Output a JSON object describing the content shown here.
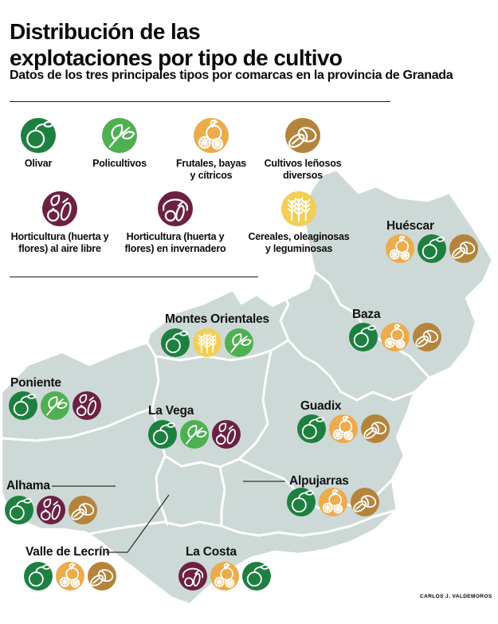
{
  "header": {
    "title": "Distribución de las\nexplotaciones por tipo de cultivo",
    "subtitle": "Datos de los tres principales tipos por comarcas en la provincia de Granada"
  },
  "crops": {
    "olivar": {
      "icon": "olive-icon",
      "color": "#1e8040"
    },
    "policultivos": {
      "icon": "leaves-icon",
      "color": "#4fb052"
    },
    "frutales": {
      "icon": "citrus-icon",
      "color": "#ecab4c"
    },
    "lenosos": {
      "icon": "nuts-icon",
      "color": "#b5843c"
    },
    "horti_libre": {
      "icon": "vegetables-icon",
      "color": "#6d2142"
    },
    "horti_inv": {
      "icon": "greenhouse-icon",
      "color": "#6d2142"
    },
    "cereales": {
      "icon": "wheat-icon",
      "color": "#f3ce55"
    }
  },
  "legend": {
    "items": [
      {
        "crop": "olivar",
        "label": "Olivar"
      },
      {
        "crop": "policultivos",
        "label": "Policultivos"
      },
      {
        "crop": "frutales",
        "label": "Frutales, bayas\ny cítricos"
      },
      {
        "crop": "lenosos",
        "label": "Cultivos leñosos\ndiversos"
      },
      {
        "crop": "horti_libre",
        "label": "Horticultura (huerta y\nflores) al aire libre"
      },
      {
        "crop": "horti_inv",
        "label": "Horticultura (huerta y\nflores) en invernadero"
      },
      {
        "crop": "cereales",
        "label": "Cereales, oleaginosas\ny leguminosas"
      }
    ]
  },
  "map": {
    "fill": "#cdd9d6",
    "border": "#ffffff",
    "regions": [
      {
        "name": "Huéscar",
        "crops": [
          "frutales",
          "olivar",
          "lenosos"
        ]
      },
      {
        "name": "Montes Orientales",
        "crops": [
          "olivar",
          "cereales",
          "policultivos"
        ]
      },
      {
        "name": "Baza",
        "crops": [
          "olivar",
          "frutales",
          "lenosos"
        ]
      },
      {
        "name": "Poniente",
        "crops": [
          "olivar",
          "policultivos",
          "horti_libre"
        ]
      },
      {
        "name": "La Vega",
        "crops": [
          "olivar",
          "policultivos",
          "horti_libre"
        ]
      },
      {
        "name": "Guadix",
        "crops": [
          "olivar",
          "frutales",
          "lenosos"
        ]
      },
      {
        "name": "Alhama",
        "crops": [
          "olivar",
          "horti_libre",
          "lenosos"
        ]
      },
      {
        "name": "Alpujarras",
        "crops": [
          "olivar",
          "frutales",
          "lenosos"
        ]
      },
      {
        "name": "Valle de Lecrín",
        "crops": [
          "olivar",
          "frutales",
          "lenosos"
        ]
      },
      {
        "name": "La Costa",
        "crops": [
          "horti_inv",
          "frutales",
          "olivar"
        ]
      }
    ]
  },
  "credit": "CARLOS J. VALDEMOROS"
}
